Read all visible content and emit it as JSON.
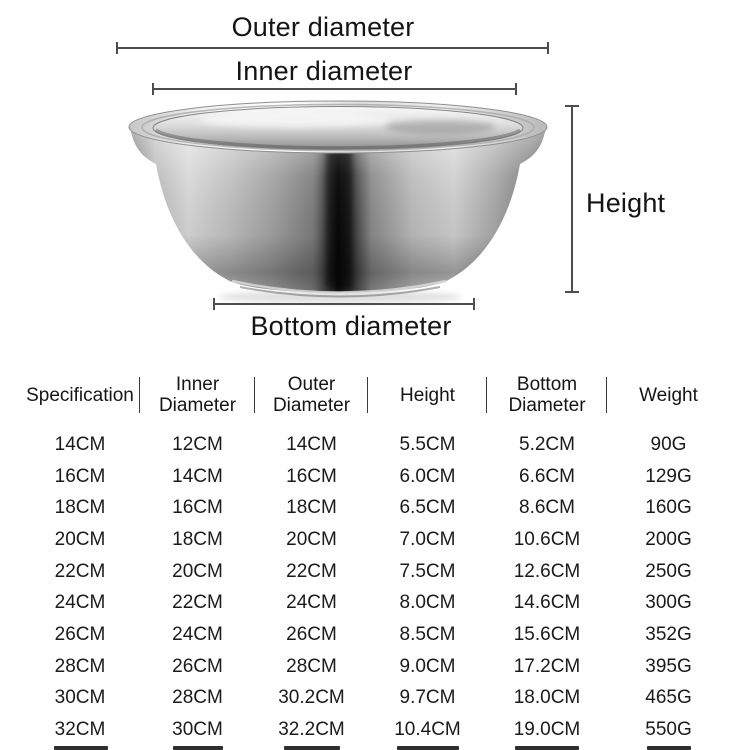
{
  "page": {
    "background": "#fefefe"
  },
  "diagram": {
    "subject": "stainless-steel-basin",
    "outer_label": "Outer diameter",
    "inner_label": "Inner diameter",
    "height_label": "Height",
    "bottom_label": "Bottom diameter",
    "line_color": "#4d4d4d",
    "label_color": "#141414"
  },
  "table": {
    "columns": [
      [
        "Specification"
      ],
      [
        "Inner",
        "Diameter"
      ],
      [
        "Outer",
        "Diameter"
      ],
      [
        "Height"
      ],
      [
        "Bottom",
        "Diameter"
      ],
      [
        "Weight"
      ]
    ],
    "rows": [
      [
        "14CM",
        "12CM",
        "14CM",
        "5.5CM",
        "5.2CM",
        "90G"
      ],
      [
        "16CM",
        "14CM",
        "16CM",
        "6.0CM",
        "6.6CM",
        "129G"
      ],
      [
        "18CM",
        "16CM",
        "18CM",
        "6.5CM",
        "8.6CM",
        "160G"
      ],
      [
        "20CM",
        "18CM",
        "20CM",
        "7.0CM",
        "10.6CM",
        "200G"
      ],
      [
        "22CM",
        "20CM",
        "22CM",
        "7.5CM",
        "12.6CM",
        "250G"
      ],
      [
        "24CM",
        "22CM",
        "24CM",
        "8.0CM",
        "14.6CM",
        "300G"
      ],
      [
        "26CM",
        "24CM",
        "26CM",
        "8.5CM",
        "15.6CM",
        "352G"
      ],
      [
        "28CM",
        "26CM",
        "28CM",
        "9.0CM",
        "17.2CM",
        "395G"
      ],
      [
        "30CM",
        "28CM",
        "30.2CM",
        "9.7CM",
        "18.0CM",
        "465G"
      ],
      [
        "32CM",
        "30CM",
        "32.2CM",
        "10.4CM",
        "19.0CM",
        "550G"
      ]
    ],
    "text_color": "#1b1b1b",
    "divider_color": "#3a3a3a"
  }
}
